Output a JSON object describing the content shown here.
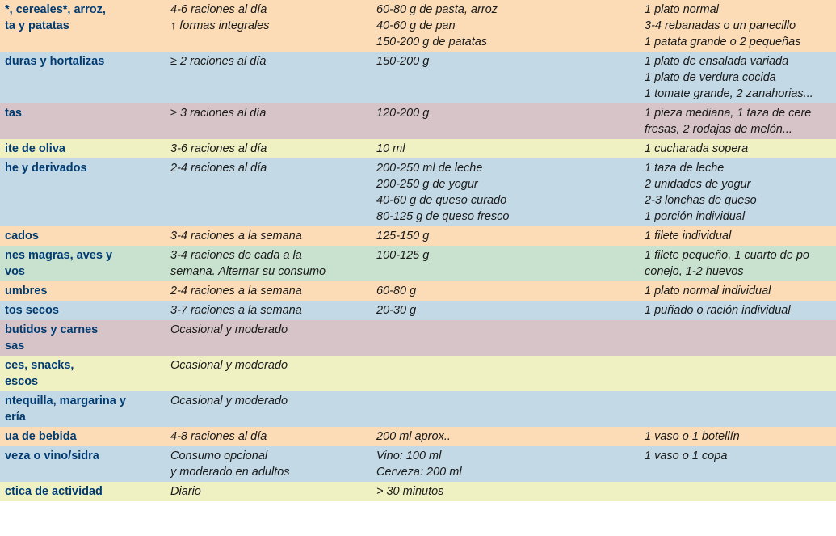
{
  "colors": {
    "orange": "#fbdcb7",
    "blue": "#c3d9e6",
    "mauve": "#d6c4c8",
    "yellow": "#eff1c3",
    "green": "#c9e2cf",
    "header_text": "#003b71"
  },
  "columns": [
    {
      "class": "col0"
    },
    {
      "class": "col1"
    },
    {
      "class": "col2"
    },
    {
      "class": "col3"
    }
  ],
  "rows": [
    {
      "bg": "orange",
      "cells": [
        [
          "*, cereales*, arroz,",
          "ta y patatas"
        ],
        [
          "4-6 raciones al día",
          "↑ formas integrales"
        ],
        [
          "60-80 g de pasta, arroz",
          "40-60 g de pan",
          "150-200 g de patatas"
        ],
        [
          "1 plato normal",
          "3-4 rebanadas o un panecillo",
          "1 patata grande o 2 pequeñas"
        ]
      ]
    },
    {
      "bg": "blue",
      "cells": [
        [
          "duras y hortalizas"
        ],
        [
          "≥ 2 raciones al día"
        ],
        [
          "150-200 g"
        ],
        [
          "1 plato de ensalada variada",
          "1 plato de verdura cocida",
          "1 tomate grande, 2 zanahorias..."
        ]
      ]
    },
    {
      "bg": "mauve",
      "cells": [
        [
          "tas"
        ],
        [
          "≥ 3 raciones al día"
        ],
        [
          "120-200 g"
        ],
        [
          "1 pieza mediana, 1 taza de cere",
          "fresas, 2 rodajas de melón..."
        ]
      ]
    },
    {
      "bg": "yellow",
      "cells": [
        [
          "ite de oliva"
        ],
        [
          "3-6 raciones al día"
        ],
        [
          "10 ml"
        ],
        [
          "1 cucharada sopera"
        ]
      ]
    },
    {
      "bg": "blue",
      "cells": [
        [
          "he y derivados"
        ],
        [
          "2-4 raciones al día"
        ],
        [
          "200-250 ml de leche",
          "200-250 g de yogur",
          "40-60 g de queso curado",
          "80-125 g de queso fresco"
        ],
        [
          "1 taza de leche",
          "2 unidades de yogur",
          "2-3 lonchas de queso",
          "1 porción individual"
        ]
      ]
    },
    {
      "bg": "orange",
      "cells": [
        [
          "cados"
        ],
        [
          "3-4 raciones a la semana"
        ],
        [
          "125-150 g"
        ],
        [
          "1 filete individual"
        ]
      ]
    },
    {
      "bg": "green",
      "cells": [
        [
          "nes magras, aves y",
          "vos"
        ],
        [
          "3-4 raciones de cada a la",
          "semana. Alternar su consumo"
        ],
        [
          "100-125 g"
        ],
        [
          "1 filete pequeño, 1 cuarto de po",
          "conejo, 1-2 huevos"
        ]
      ]
    },
    {
      "bg": "orange",
      "cells": [
        [
          "umbres"
        ],
        [
          "2-4 raciones a la semana"
        ],
        [
          "60-80 g"
        ],
        [
          "1 plato normal individual"
        ]
      ]
    },
    {
      "bg": "blue",
      "cells": [
        [
          "tos secos"
        ],
        [
          "3-7 raciones a la semana"
        ],
        [
          "20-30 g"
        ],
        [
          "1 puñado o ración individual"
        ]
      ]
    },
    {
      "bg": "mauve",
      "cells": [
        [
          "butidos y carnes",
          "sas"
        ],
        [
          "Ocasional y moderado"
        ],
        [
          ""
        ],
        [
          ""
        ]
      ]
    },
    {
      "bg": "yellow",
      "cells": [
        [
          "ces, snacks,",
          "escos"
        ],
        [
          "Ocasional y moderado"
        ],
        [
          ""
        ],
        [
          ""
        ]
      ]
    },
    {
      "bg": "blue",
      "cells": [
        [
          "ntequilla, margarina y",
          "ería"
        ],
        [
          "Ocasional y moderado"
        ],
        [
          ""
        ],
        [
          ""
        ]
      ]
    },
    {
      "bg": "orange",
      "cells": [
        [
          "ua de bebida"
        ],
        [
          "4-8 raciones al día"
        ],
        [
          "200 ml aprox.."
        ],
        [
          "1 vaso o 1 botellín"
        ]
      ]
    },
    {
      "bg": "blue",
      "cells": [
        [
          "veza o vino/sidra"
        ],
        [
          "Consumo opcional",
          "y moderado en adultos"
        ],
        [
          "Vino: 100 ml",
          "Cerveza: 200 ml"
        ],
        [
          "1 vaso o 1 copa"
        ]
      ]
    },
    {
      "bg": "yellow",
      "cells": [
        [
          "ctica de actividad"
        ],
        [
          "Diario"
        ],
        [
          "> 30 minutos"
        ],
        [
          ""
        ]
      ]
    }
  ]
}
